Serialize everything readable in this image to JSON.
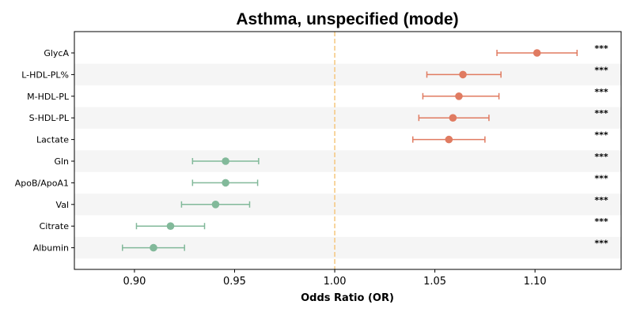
{
  "chart_data": {
    "type": "forest",
    "title": "Asthma, unspecified (mode)",
    "xlabel": "Odds Ratio (OR)",
    "ylabel": "",
    "xlim": [
      0.87,
      1.143
    ],
    "xticks": [
      0.9,
      0.95,
      1.0,
      1.05,
      1.1
    ],
    "xtick_labels": [
      "0.90",
      "0.95",
      "1.00",
      "1.05",
      "1.10"
    ],
    "reference_line": 1.0,
    "row_striping": true,
    "grid": false,
    "colors": {
      "positive": "#E07B61",
      "negative": "#82B99A",
      "reference": "#F5C77E",
      "stripe": "#F5F5F5"
    },
    "items": [
      {
        "label": "GlycA",
        "or": 1.101,
        "ci_low": 1.081,
        "ci_high": 1.121,
        "significance": "***"
      },
      {
        "label": "L-HDL-PL%",
        "or": 1.064,
        "ci_low": 1.046,
        "ci_high": 1.083,
        "significance": "***"
      },
      {
        "label": "M-HDL-PL",
        "or": 1.062,
        "ci_low": 1.044,
        "ci_high": 1.082,
        "significance": "***"
      },
      {
        "label": "S-HDL-PL",
        "or": 1.059,
        "ci_low": 1.042,
        "ci_high": 1.077,
        "significance": "***"
      },
      {
        "label": "Lactate",
        "or": 1.057,
        "ci_low": 1.039,
        "ci_high": 1.075,
        "significance": "***"
      },
      {
        "label": "Gln",
        "or": 0.9455,
        "ci_low": 0.929,
        "ci_high": 0.962,
        "significance": "***"
      },
      {
        "label": "ApoB/ApoA1",
        "or": 0.9455,
        "ci_low": 0.929,
        "ci_high": 0.9615,
        "significance": "***"
      },
      {
        "label": "Val",
        "or": 0.9405,
        "ci_low": 0.9235,
        "ci_high": 0.9575,
        "significance": "***"
      },
      {
        "label": "Citrate",
        "or": 0.918,
        "ci_low": 0.901,
        "ci_high": 0.935,
        "significance": "***"
      },
      {
        "label": "Albumin",
        "or": 0.9095,
        "ci_low": 0.894,
        "ci_high": 0.925,
        "significance": "***"
      }
    ]
  }
}
